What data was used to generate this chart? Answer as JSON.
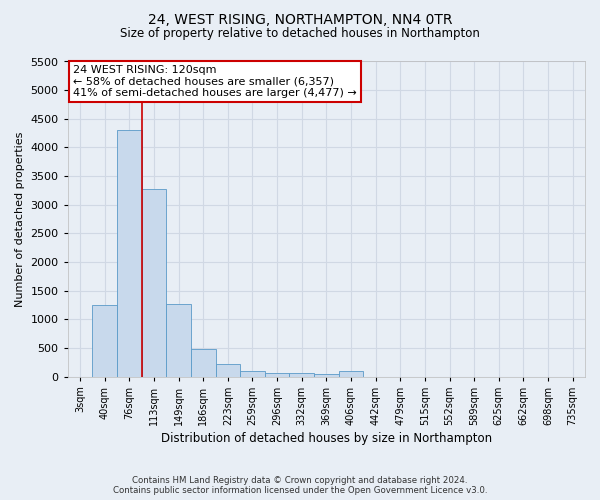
{
  "title": "24, WEST RISING, NORTHAMPTON, NN4 0TR",
  "subtitle": "Size of property relative to detached houses in Northampton",
  "xlabel": "Distribution of detached houses by size in Northampton",
  "ylabel": "Number of detached properties",
  "footnote1": "Contains HM Land Registry data © Crown copyright and database right 2024.",
  "footnote2": "Contains public sector information licensed under the Open Government Licence v3.0.",
  "categories": [
    "3sqm",
    "40sqm",
    "76sqm",
    "113sqm",
    "149sqm",
    "186sqm",
    "223sqm",
    "259sqm",
    "296sqm",
    "332sqm",
    "369sqm",
    "406sqm",
    "442sqm",
    "479sqm",
    "515sqm",
    "552sqm",
    "589sqm",
    "625sqm",
    "662sqm",
    "698sqm",
    "735sqm"
  ],
  "values": [
    0,
    1250,
    4300,
    3280,
    1270,
    480,
    220,
    100,
    65,
    55,
    45,
    90,
    0,
    0,
    0,
    0,
    0,
    0,
    0,
    0,
    0
  ],
  "bar_color": "#c8d9ec",
  "bar_edge_color": "#5a9ac8",
  "ylim": [
    0,
    5500
  ],
  "yticks": [
    0,
    500,
    1000,
    1500,
    2000,
    2500,
    3000,
    3500,
    4000,
    4500,
    5000,
    5500
  ],
  "marker_label": "24 WEST RISING: 120sqm",
  "annotation_line1": "← 58% of detached houses are smaller (6,357)",
  "annotation_line2": "41% of semi-detached houses are larger (4,477) →",
  "vline_x": 2.5,
  "vline_color": "#cc0000",
  "annotation_box_color": "#cc0000",
  "bg_color": "#e8eef5",
  "plot_bg_color": "#e8eef5",
  "grid_color": "#d0d8e4"
}
